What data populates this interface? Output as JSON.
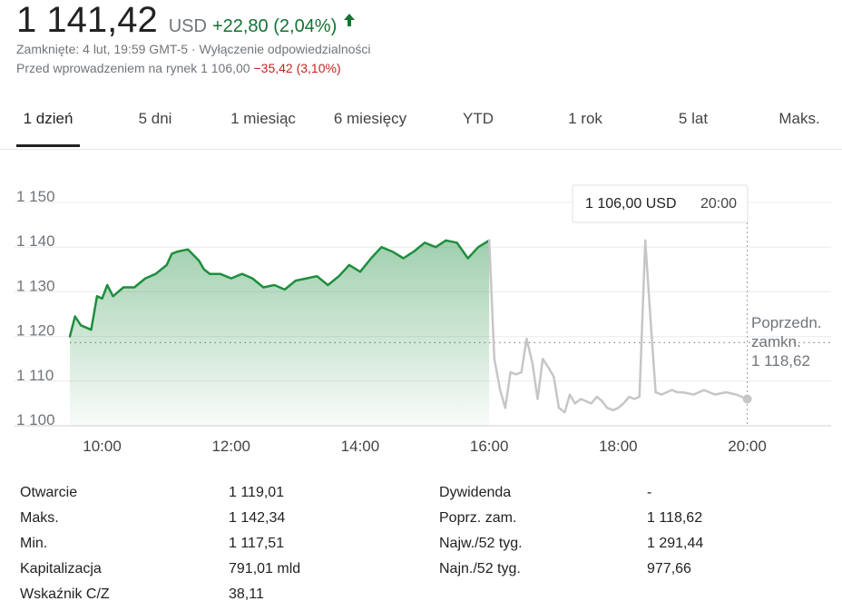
{
  "quote": {
    "price": "1 141,42",
    "currency": "USD",
    "change": "+22,80 (2,04%)",
    "closed_line": "Zamknięte: 4 lut, 19:59 GMT-5 · Wyłączenie odpowiedzialności",
    "premarket_prefix": "Przed wprowadzeniem na rynek 1 106,00",
    "premarket_change": "−35,42 (3,10%)",
    "colors": {
      "up": "#137333",
      "down": "#c5221f"
    }
  },
  "tabs": [
    "1 dzień",
    "5 dni",
    "1 miesiąc",
    "6 miesięcy",
    "YTD",
    "1 rok",
    "5 lat",
    "Maks."
  ],
  "active_tab": "1 dzień",
  "chart_data": {
    "type": "line",
    "x_unit": "hours",
    "xlim": [
      9.5,
      21.3
    ],
    "ylim": [
      1100,
      1150
    ],
    "y_ticks": [
      1100,
      1110,
      1120,
      1130,
      1140,
      1150
    ],
    "y_tick_labels": [
      "1 100",
      "1 110",
      "1 120",
      "1 130",
      "1 140",
      "1 150"
    ],
    "x_ticks": [
      10,
      12,
      14,
      16,
      18,
      20
    ],
    "x_tick_labels": [
      "10:00",
      "12:00",
      "14:00",
      "16:00",
      "18:00",
      "20:00"
    ],
    "grid": true,
    "previous_close": 1118.62,
    "previous_close_label": [
      "Poprzedn.",
      "zamkn.",
      "1 118,62"
    ],
    "tooltip": {
      "value": "1 106,00 USD",
      "time": "20:00"
    },
    "series": [
      {
        "color": "#1e8e3e",
        "fill": true,
        "x": [
          9.5,
          9.58,
          9.67,
          9.83,
          9.92,
          10.0,
          10.08,
          10.17,
          10.33,
          10.5,
          10.67,
          10.83,
          11.0,
          11.08,
          11.17,
          11.33,
          11.5,
          11.58,
          11.67,
          11.83,
          12.0,
          12.17,
          12.33,
          12.5,
          12.67,
          12.83,
          13.0,
          13.17,
          13.33,
          13.5,
          13.67,
          13.83,
          14.0,
          14.17,
          14.33,
          14.5,
          14.67,
          14.83,
          15.0,
          15.17,
          15.33,
          15.5,
          15.67,
          15.83,
          16.0
        ],
        "y": [
          1120.0,
          1124.5,
          1122.5,
          1121.5,
          1129.0,
          1128.5,
          1131.5,
          1129.0,
          1131.0,
          1131.0,
          1133.0,
          1134.0,
          1136.0,
          1138.5,
          1139.0,
          1139.5,
          1137.0,
          1135.0,
          1134.0,
          1134.0,
          1133.0,
          1134.0,
          1133.0,
          1131.0,
          1131.5,
          1130.5,
          1132.5,
          1133.0,
          1133.5,
          1131.5,
          1133.5,
          1136.0,
          1134.5,
          1137.5,
          1140.0,
          1139.0,
          1137.5,
          1139.0,
          1141.0,
          1140.0,
          1141.5,
          1141.0,
          1137.5,
          1140.0,
          1141.5
        ]
      },
      {
        "color": "#c6c6c6",
        "fill": false,
        "x": [
          16.0,
          16.08,
          16.17,
          16.25,
          16.33,
          16.42,
          16.5,
          16.58,
          16.67,
          16.75,
          16.83,
          16.92,
          17.0,
          17.08,
          17.17,
          17.25,
          17.33,
          17.42,
          17.5,
          17.58,
          17.67,
          17.75,
          17.83,
          17.92,
          18.0,
          18.08,
          18.17,
          18.25,
          18.33,
          18.42,
          18.5,
          18.58,
          18.67,
          18.75,
          18.83,
          18.92,
          19.0,
          19.17,
          19.33,
          19.5,
          19.67,
          19.83,
          20.0
        ],
        "y": [
          1141.5,
          1115.0,
          1108.0,
          1104.0,
          1112.0,
          1111.5,
          1112.0,
          1119.5,
          1114.0,
          1106.0,
          1115.0,
          1113.0,
          1111.0,
          1104.0,
          1103.0,
          1107.0,
          1105.0,
          1106.0,
          1105.5,
          1105.0,
          1106.5,
          1105.5,
          1104.0,
          1103.5,
          1104.0,
          1105.0,
          1106.5,
          1106.0,
          1106.5,
          1141.5,
          1124.0,
          1107.5,
          1107.0,
          1107.5,
          1108.0,
          1107.5,
          1107.5,
          1107.0,
          1108.0,
          1107.0,
          1107.5,
          1107.0,
          1106.0
        ]
      }
    ]
  },
  "stats": {
    "left": [
      {
        "label": "Otwarcie",
        "value": "1 119,01"
      },
      {
        "label": "Maks.",
        "value": "1 142,34"
      },
      {
        "label": "Min.",
        "value": "1 117,51"
      },
      {
        "label": "Kapitalizacja",
        "value": "791,01 mld"
      },
      {
        "label": "Wskaźnik C/Z",
        "value": "38,11"
      }
    ],
    "right": [
      {
        "label": "Dywidenda",
        "value": "-"
      },
      {
        "label": "Poprz. zam.",
        "value": "1 118,62"
      },
      {
        "label": "Najw./52 tyg.",
        "value": "1 291,44"
      },
      {
        "label": "Najn./52 tyg.",
        "value": "977,66"
      }
    ]
  }
}
